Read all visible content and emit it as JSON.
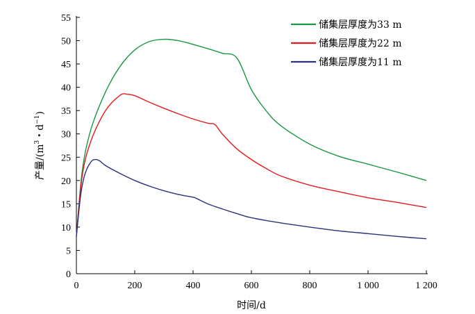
{
  "chart_data": {
    "type": "line",
    "xlabel": "时间/d",
    "ylabel": "产量/(m³・d⁻¹)",
    "ylabel_parts": {
      "main": "产量/(m",
      "sup1": "3",
      "mid": "・d",
      "sup2": "−1",
      "end": ")"
    },
    "xlim": [
      0,
      1200
    ],
    "ylim": [
      0,
      55
    ],
    "xticks": [
      0,
      200,
      400,
      600,
      800,
      1000,
      1200
    ],
    "xtick_labels": [
      "0",
      "200",
      "400",
      "600",
      "800",
      "1 000",
      "1 200"
    ],
    "yticks": [
      0,
      5,
      10,
      15,
      20,
      25,
      30,
      35,
      40,
      45,
      50,
      55
    ],
    "ytick_labels": [
      "0",
      "5",
      "10",
      "15",
      "20",
      "25",
      "30",
      "35",
      "40",
      "45",
      "50",
      "55"
    ],
    "grid": false,
    "legend_position": "top-right",
    "series": [
      {
        "name": "储集层厚度为33 m",
        "color": "#1a9641",
        "x": [
          0,
          20,
          50,
          100,
          150,
          200,
          250,
          300,
          350,
          400,
          450,
          500,
          550,
          600,
          650,
          700,
          800,
          900,
          1000,
          1100,
          1200
        ],
        "y": [
          8,
          22,
          31,
          39,
          44.5,
          48,
          49.8,
          50.3,
          50,
          49.2,
          48.3,
          47.3,
          46.3,
          39.5,
          35,
          31.8,
          27.8,
          25.2,
          23.5,
          21.8,
          20
        ]
      },
      {
        "name": "储集层厚度为22 m",
        "color": "#e31a1c",
        "x": [
          0,
          20,
          50,
          100,
          150,
          175,
          200,
          250,
          300,
          350,
          400,
          450,
          475,
          500,
          550,
          600,
          650,
          700,
          800,
          900,
          1000,
          1100,
          1200
        ],
        "y": [
          8,
          21,
          28.5,
          35,
          38.3,
          38.5,
          38.2,
          36.8,
          35.5,
          34.3,
          33.2,
          32.3,
          32,
          30,
          26.8,
          24.5,
          22.6,
          21,
          19,
          17.6,
          16.3,
          15.3,
          14.2
        ]
      },
      {
        "name": "储集层厚度为11 m",
        "color": "#2c2f7c",
        "x": [
          0,
          15,
          30,
          50,
          65,
          80,
          100,
          150,
          200,
          250,
          300,
          350,
          400,
          410,
          450,
          500,
          550,
          600,
          700,
          800,
          900,
          1000,
          1100,
          1200
        ],
        "y": [
          8,
          17,
          21.5,
          24,
          24.5,
          24.2,
          23.2,
          21.5,
          20,
          18.8,
          17.8,
          17,
          16.4,
          16.2,
          15,
          13.9,
          12.9,
          12,
          10.9,
          10,
          9.2,
          8.6,
          8,
          7.5
        ]
      }
    ]
  }
}
